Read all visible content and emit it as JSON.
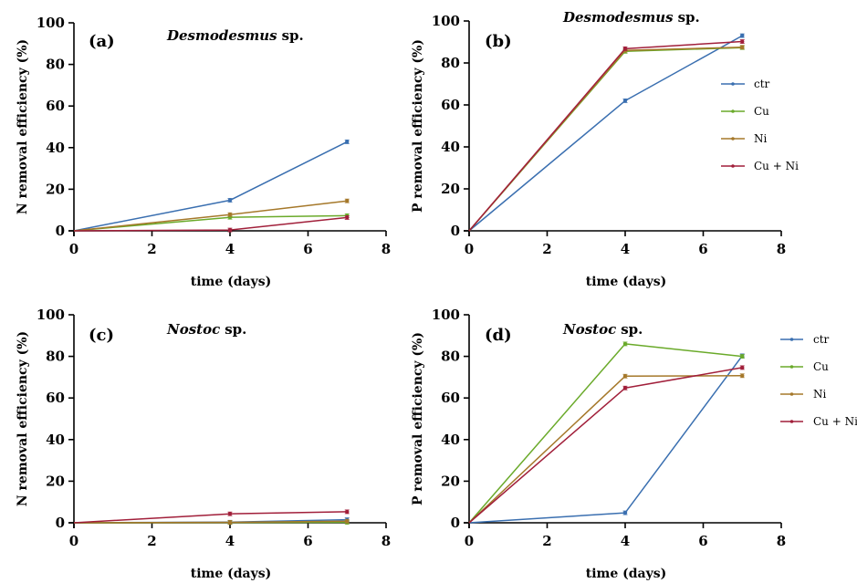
{
  "chart_data": [
    {
      "type": "line",
      "panel_label": "(a)",
      "title_italic": "Desmodesmus",
      "title_rest": "sp.",
      "xlabel": "time (days)",
      "ylabel": "N removal efficiency (%)",
      "xlim": [
        0,
        8
      ],
      "ylim": [
        0,
        100
      ],
      "x_ticks": [
        "0",
        "2",
        "4",
        "6",
        "8"
      ],
      "y_ticks": [
        "0",
        "20",
        "40",
        "60",
        "80",
        "100"
      ],
      "grid": false,
      "legend": null,
      "x": [
        0,
        4,
        7
      ],
      "series": [
        {
          "name": "ctr",
          "values": [
            0,
            14.7,
            42.8
          ]
        },
        {
          "name": "Cu",
          "values": [
            0,
            6.5,
            7.3
          ]
        },
        {
          "name": "Ni",
          "values": [
            0,
            7.8,
            14.4
          ]
        },
        {
          "name": "Cu + Ni",
          "values": [
            0,
            0.4,
            6.4
          ]
        }
      ]
    },
    {
      "type": "line",
      "panel_label": "(b)",
      "title_italic": "Desmodesmus",
      "title_rest": "sp.",
      "xlabel": "time (days)",
      "ylabel": "P removal efficiency (%)",
      "xlim": [
        0,
        8
      ],
      "ylim": [
        0,
        100
      ],
      "x_ticks": [
        "0",
        "2",
        "4",
        "6",
        "8"
      ],
      "y_ticks": [
        "0",
        "20",
        "40",
        "60",
        "80",
        "100"
      ],
      "grid": false,
      "legend": "right",
      "x": [
        0,
        4,
        7
      ],
      "series": [
        {
          "name": "ctr",
          "values": [
            0,
            62,
            93
          ]
        },
        {
          "name": "Cu",
          "values": [
            0,
            85.5,
            87.3
          ]
        },
        {
          "name": "Ni",
          "values": [
            0,
            86,
            87.5
          ]
        },
        {
          "name": "Cu + Ni",
          "values": [
            0,
            86.8,
            90.2
          ]
        }
      ]
    },
    {
      "type": "line",
      "panel_label": "(c)",
      "title_italic": "Nostoc",
      "title_rest": "sp.",
      "xlabel": "time (days)",
      "ylabel": "N removal efficiency (%)",
      "xlim": [
        0,
        8
      ],
      "ylim": [
        0,
        100
      ],
      "x_ticks": [
        "0",
        "2",
        "4",
        "6",
        "8"
      ],
      "y_ticks": [
        "0",
        "20",
        "40",
        "60",
        "80",
        "100"
      ],
      "grid": false,
      "legend": null,
      "x": [
        0,
        4,
        7
      ],
      "series": [
        {
          "name": "ctr",
          "values": [
            0,
            0.3,
            1.5
          ]
        },
        {
          "name": "Cu",
          "values": [
            0,
            0.1,
            0.2
          ]
        },
        {
          "name": "Ni",
          "values": [
            0,
            0.2,
            0.8
          ]
        },
        {
          "name": "Cu + Ni",
          "values": [
            0,
            4.3,
            5.3
          ]
        }
      ]
    },
    {
      "type": "line",
      "panel_label": "(d)",
      "title_italic": "Nostoc",
      "title_rest": "sp.",
      "xlabel": "time (days)",
      "ylabel": "P removal efficiency (%)",
      "xlim": [
        0,
        8
      ],
      "ylim": [
        0,
        100
      ],
      "x_ticks": [
        "0",
        "2",
        "4",
        "6",
        "8"
      ],
      "y_ticks": [
        "0",
        "20",
        "40",
        "60",
        "80",
        "100"
      ],
      "grid": false,
      "legend": "right",
      "x": [
        0,
        4,
        7
      ],
      "series": [
        {
          "name": "ctr",
          "values": [
            0,
            4.8,
            80.3
          ]
        },
        {
          "name": "Cu",
          "values": [
            0,
            86,
            80
          ]
        },
        {
          "name": "Ni",
          "values": [
            0,
            70.5,
            70.7
          ]
        },
        {
          "name": "Cu + Ni",
          "values": [
            0,
            64.8,
            74.6
          ]
        }
      ]
    }
  ],
  "series_colors": {
    "ctr": "#3a6fb0",
    "Cu": "#6aaa2a",
    "Ni": "#a5782a",
    "Cu + Ni": "#a11f3a"
  }
}
